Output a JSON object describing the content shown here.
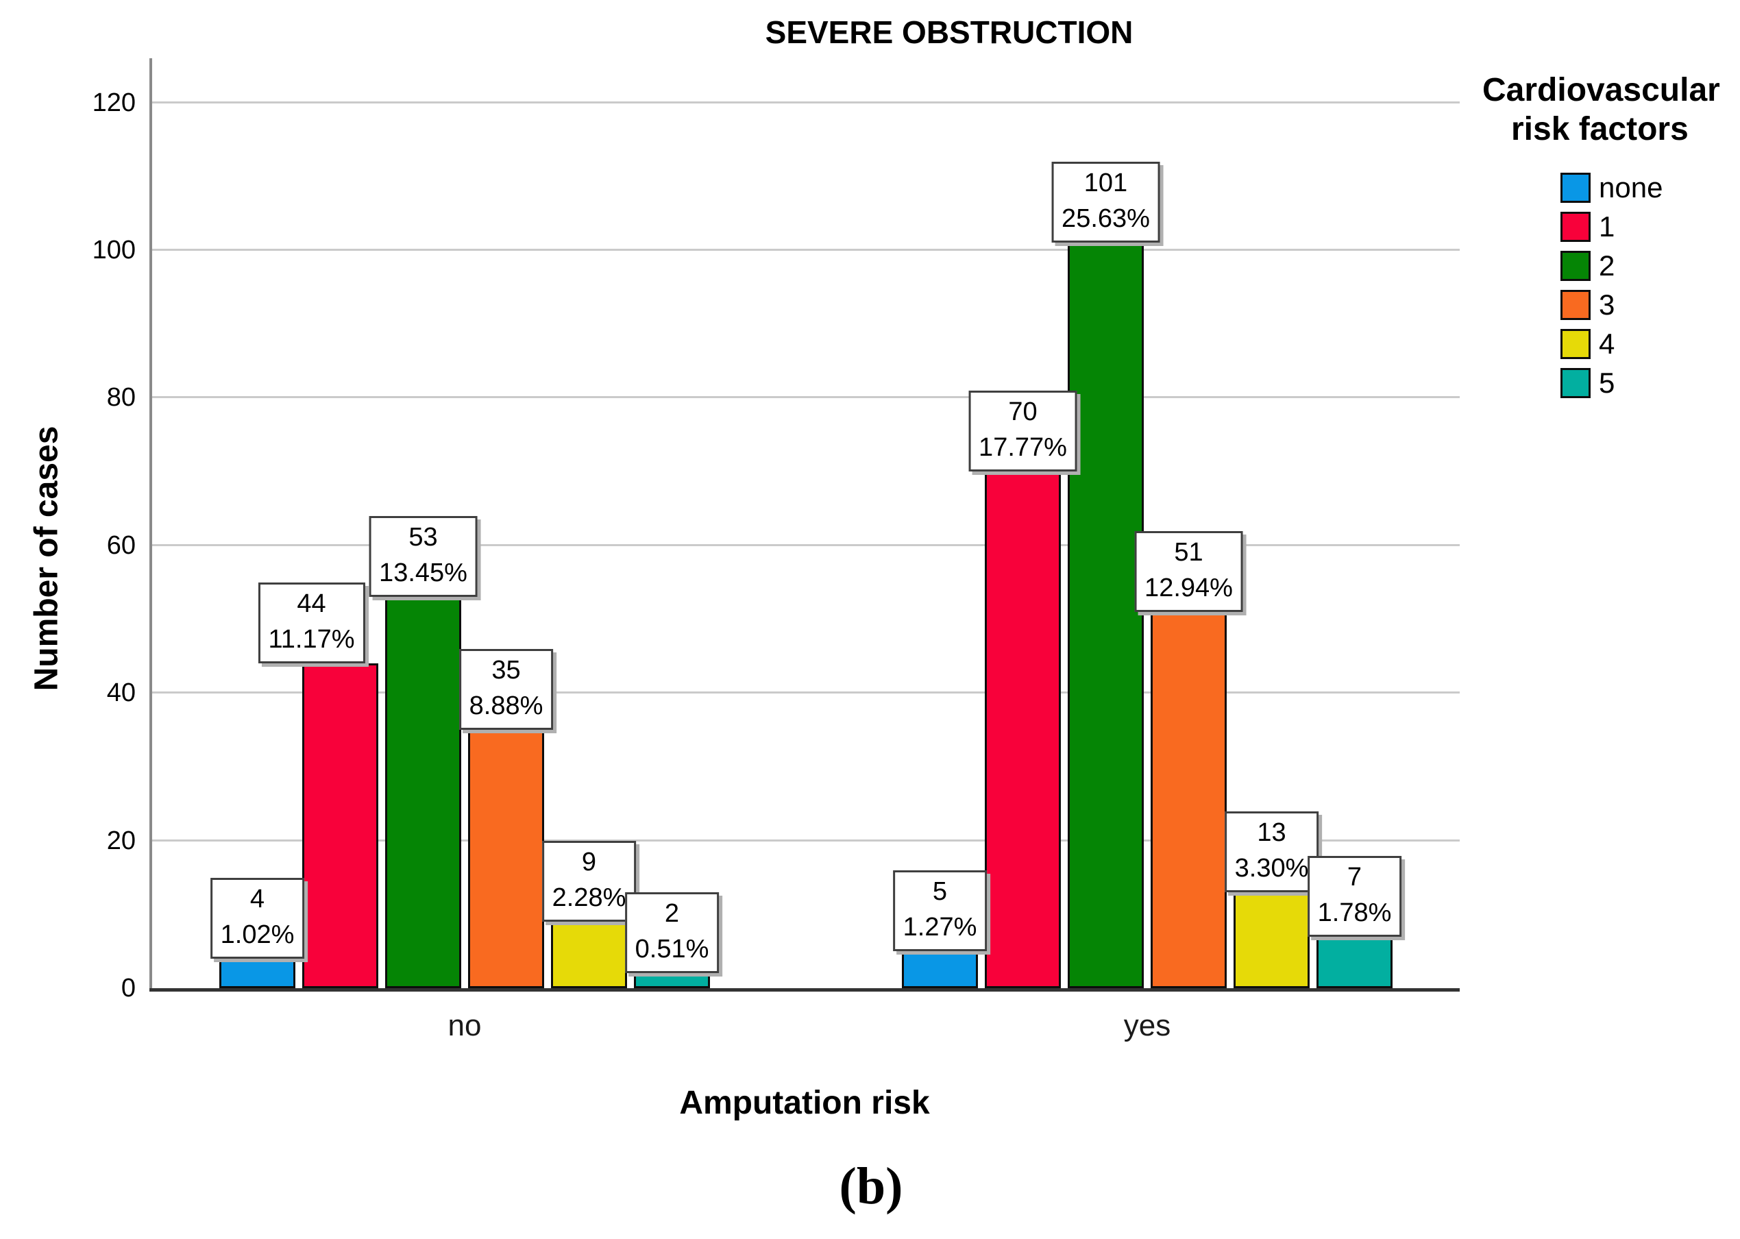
{
  "page": {
    "caption": "(b)"
  },
  "chart_data": {
    "type": "bar",
    "title": "SEVERE OBSTRUCTION",
    "xlabel": "Amputation risk",
    "ylabel": "Number of cases",
    "categories": [
      "no",
      "yes"
    ],
    "yticks": [
      0,
      20,
      40,
      60,
      80,
      100,
      120
    ],
    "ylim": [
      0,
      126
    ],
    "grid": "horizontal-only",
    "legend": {
      "position": "right",
      "title_lines": [
        "Cardiovascular",
        "risk factors"
      ],
      "entries": [
        {
          "label": "none",
          "color": "#0997E6"
        },
        {
          "label": "1",
          "color": "#F8013A"
        },
        {
          "label": "2",
          "color": "#058505"
        },
        {
          "label": "3",
          "color": "#F96A20"
        },
        {
          "label": "4",
          "color": "#E6DA08"
        },
        {
          "label": "5",
          "color": "#02AFA0"
        }
      ]
    },
    "series": [
      {
        "name": "none",
        "color": "#0997E6",
        "values": [
          4,
          5
        ],
        "percents": [
          "1.02%",
          "1.27%"
        ],
        "label_dx": [
          0,
          0
        ]
      },
      {
        "name": "1",
        "color": "#F8013A",
        "values": [
          44,
          70
        ],
        "percents": [
          "11.17%",
          "17.77%"
        ],
        "label_dx": [
          -42,
          0
        ]
      },
      {
        "name": "2",
        "color": "#058505",
        "values": [
          53,
          101
        ],
        "percents": [
          "13.45%",
          "25.63%"
        ],
        "label_dx": [
          0,
          0
        ]
      },
      {
        "name": "3",
        "color": "#F96A20",
        "values": [
          35,
          51
        ],
        "percents": [
          "8.88%",
          "12.94%"
        ],
        "label_dx": [
          0,
          0
        ]
      },
      {
        "name": "4",
        "color": "#E6DA08",
        "values": [
          9,
          13
        ],
        "percents": [
          "2.28%",
          "3.30%"
        ],
        "label_dx": [
          0,
          0
        ]
      },
      {
        "name": "5",
        "color": "#02AFA0",
        "values": [
          2,
          7
        ],
        "percents": [
          "0.51%",
          "1.78%"
        ],
        "label_dx": [
          0,
          0
        ]
      }
    ],
    "bar_labels_format": "count above percent"
  }
}
